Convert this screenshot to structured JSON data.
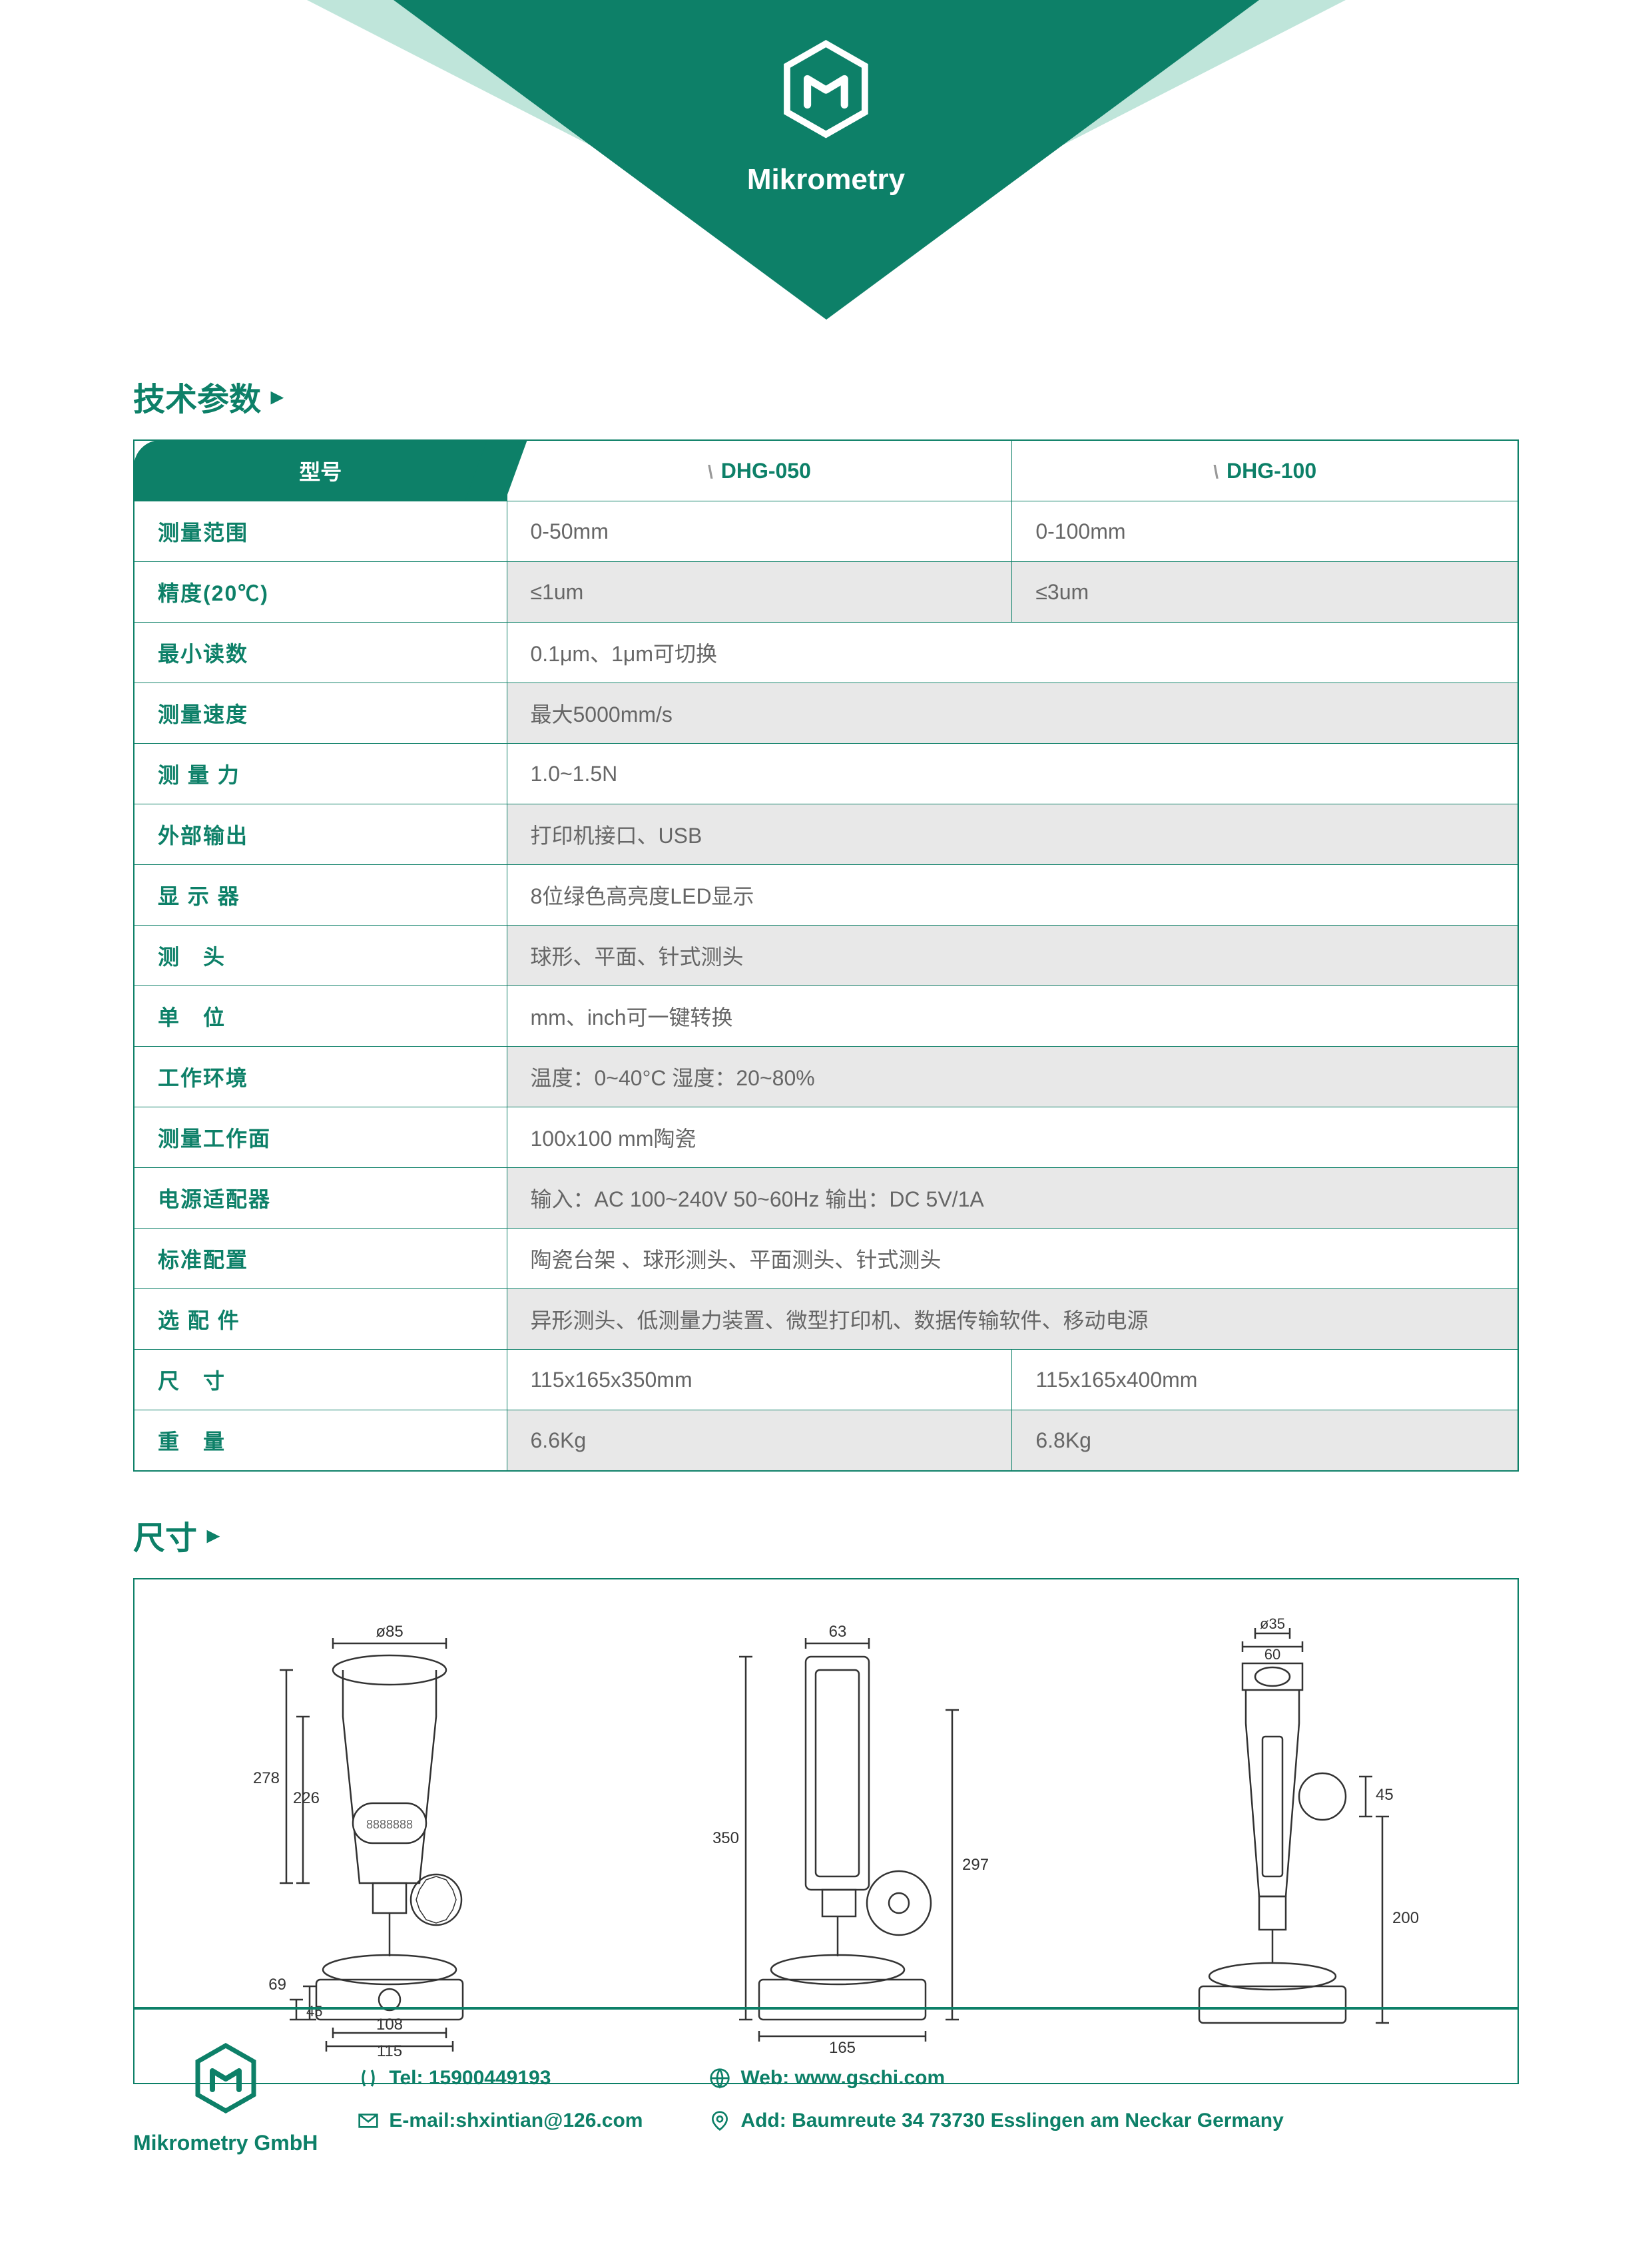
{
  "brand": "Mikrometry",
  "colors": {
    "primary": "#0d8068",
    "light_overlay": "rgba(72,180,150,0.35)",
    "text_gray": "#666666",
    "row_alt": "#e8e8e8"
  },
  "sections": {
    "specs_title": "技术参数",
    "dims_title": "尺寸"
  },
  "spec_table": {
    "header": {
      "model_label": "型号",
      "col1": "DHG-050",
      "col2": "DHG-100"
    },
    "rows": [
      {
        "label": "测量范围",
        "c1": "0-50mm",
        "c2": "0-100mm",
        "span": false
      },
      {
        "label": "精度(20℃)",
        "c1": "≤1um",
        "c2": "≤3um",
        "span": false
      },
      {
        "label": "最小读数",
        "val": "0.1μm、1μm可切换",
        "span": true
      },
      {
        "label": "测量速度",
        "val": "最大5000mm/s",
        "span": true
      },
      {
        "label": "测 量 力",
        "val": "1.0~1.5N",
        "span": true
      },
      {
        "label": "外部输出",
        "val": "打印机接口、USB",
        "span": true
      },
      {
        "label": "显 示 器",
        "val": "8位绿色高亮度LED显示",
        "span": true
      },
      {
        "label": "测　头",
        "val": "球形、平面、针式测头",
        "span": true
      },
      {
        "label": "单　位",
        "val": "mm、inch可一键转换",
        "span": true
      },
      {
        "label": "工作环境",
        "val": "温度：0~40°C 湿度：20~80%",
        "span": true
      },
      {
        "label": "测量工作面",
        "val": "100x100 mm陶瓷",
        "span": true
      },
      {
        "label": "电源适配器",
        "val": "输入：AC 100~240V 50~60Hz 输出：DC 5V/1A",
        "span": true
      },
      {
        "label": "标准配置",
        "val": "陶瓷台架 、球形测头、平面测头、针式测头",
        "span": true
      },
      {
        "label": "选 配 件",
        "val": "异形测头、低测量力装置、微型打印机、数据传输软件、移动电源",
        "span": true
      },
      {
        "label": "尺　寸",
        "c1": "115x165x350mm",
        "c2": "115x165x400mm",
        "span": false
      },
      {
        "label": "重　量",
        "c1": "6.6Kg",
        "c2": "6.8Kg",
        "span": false
      }
    ]
  },
  "dimensions_views": {
    "front": {
      "labels": [
        "ø85",
        "226",
        "278",
        "69",
        "45",
        "108",
        "115"
      ]
    },
    "side": {
      "labels": [
        "63",
        "350",
        "297",
        "165"
      ]
    },
    "back": {
      "labels": [
        "60",
        "ø35",
        "45",
        "200"
      ]
    }
  },
  "footer": {
    "company": "Mikrometry GmbH",
    "tel_label": "Tel: ",
    "tel": "15900449193",
    "web_label": "Web: ",
    "web": "www.gschi.com",
    "email_label": "E-mail:",
    "email": "shxintian@126.com",
    "add_label": "Add: ",
    "add": "Baumreute 34 73730 Esslingen am Neckar Germany"
  }
}
